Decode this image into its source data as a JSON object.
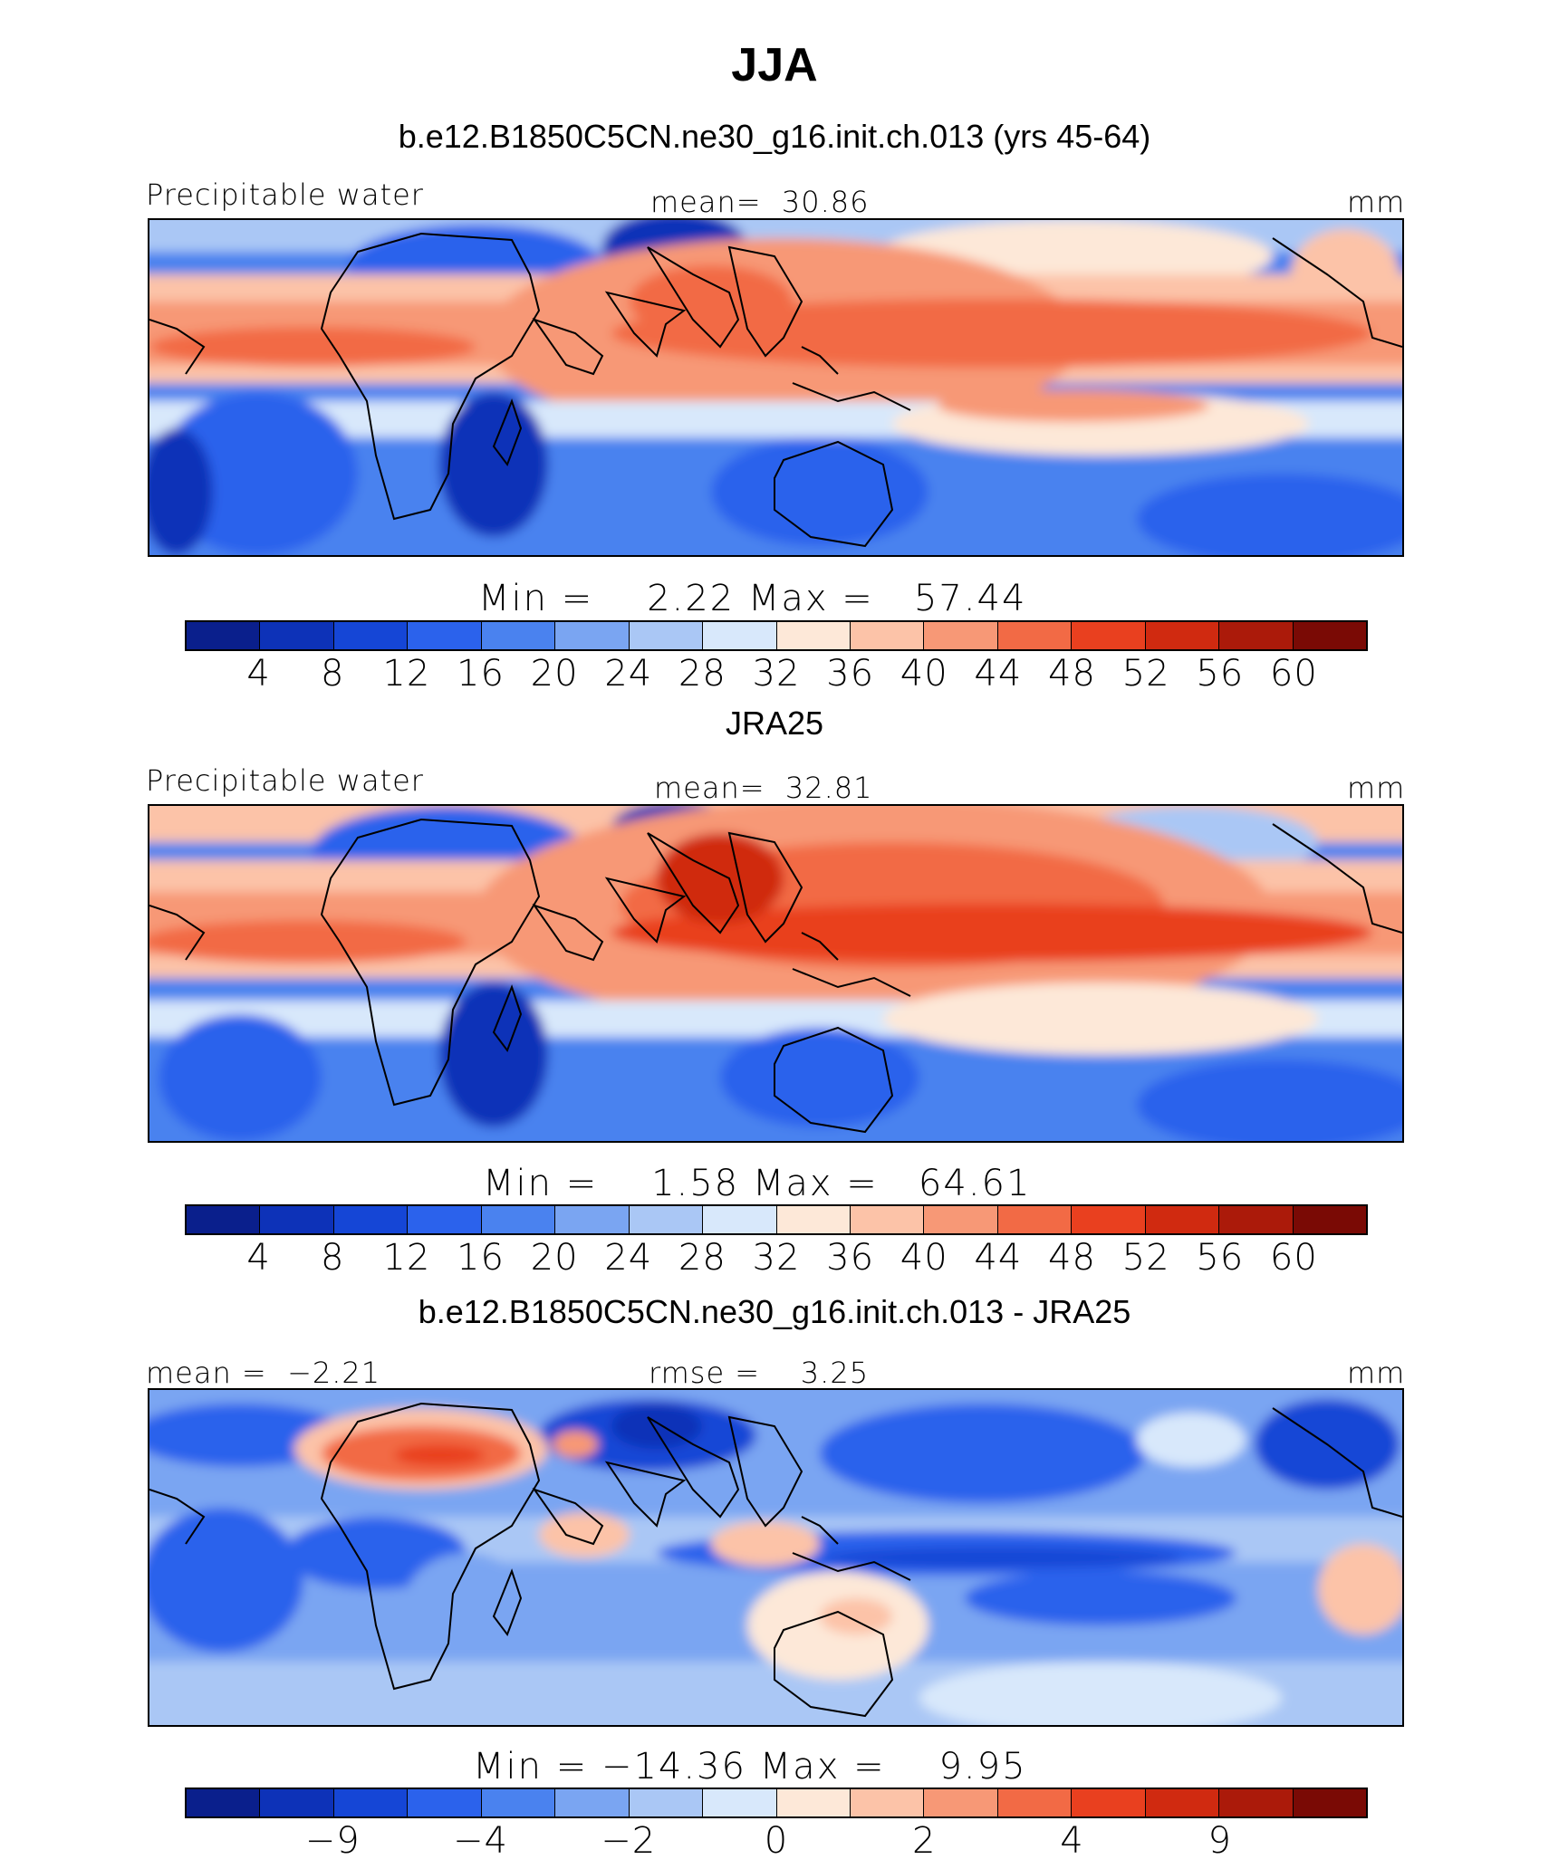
{
  "title": "JJA",
  "colors": [
    "#0a1f8c",
    "#0d32b8",
    "#1546d6",
    "#2b62ec",
    "#4a82ef",
    "#7aa5f2",
    "#aac7f5",
    "#d8e8fb",
    "#fde8d8",
    "#fcc3a8",
    "#f79876",
    "#f26a45",
    "#e9401f",
    "#d02a10",
    "#ab1a0a",
    "#7a0a05"
  ],
  "panels": [
    {
      "title": "b.e12.B1850C5CN.ne30_g16.init.ch.013 (yrs 45-64)",
      "left_label": "Precipitable water",
      "center_label": "mean=  30.86",
      "units": "mm",
      "min_max": "Min =    2.22 Max =   57.44",
      "ticks": [
        "4",
        "8",
        "12",
        "16",
        "20",
        "24",
        "28",
        "32",
        "36",
        "40",
        "44",
        "48",
        "52",
        "56",
        "60"
      ]
    },
    {
      "title": "JRA25",
      "left_label": "Precipitable water",
      "center_label": "mean=  32.81",
      "units": "mm",
      "min_max": "Min =    1.58 Max =   64.61",
      "ticks": [
        "4",
        "8",
        "12",
        "16",
        "20",
        "24",
        "28",
        "32",
        "36",
        "40",
        "44",
        "48",
        "52",
        "56",
        "60"
      ]
    },
    {
      "title": "b.e12.B1850C5CN.ne30_g16.init.ch.013 - JRA25",
      "left_label": "mean =  −2.21",
      "center_label": "rmse =    3.25",
      "units": "mm",
      "min_max": "Min = −14.36 Max =    9.95",
      "ticks": [
        "−9",
        "−4",
        "−2",
        "0",
        "2",
        "4",
        "9"
      ]
    }
  ],
  "chart_data": [
    {
      "type": "heatmap",
      "title": "b.e12.B1850C5CN.ne30_g16.init.ch.013 (yrs 45-64)",
      "variable": "Precipitable water",
      "units": "mm",
      "mean": 30.86,
      "min": 2.22,
      "max": 57.44,
      "contour_levels": [
        4,
        8,
        12,
        16,
        20,
        24,
        28,
        32,
        36,
        40,
        44,
        48,
        52,
        56,
        60
      ],
      "colormap": "blue-white-red"
    },
    {
      "type": "heatmap",
      "title": "JRA25",
      "variable": "Precipitable water",
      "units": "mm",
      "mean": 32.81,
      "min": 1.58,
      "max": 64.61,
      "contour_levels": [
        4,
        8,
        12,
        16,
        20,
        24,
        28,
        32,
        36,
        40,
        44,
        48,
        52,
        56,
        60
      ],
      "colormap": "blue-white-red"
    },
    {
      "type": "heatmap",
      "title": "b.e12.B1850C5CN.ne30_g16.init.ch.013 - JRA25",
      "units": "mm",
      "mean": -2.21,
      "rmse": 3.25,
      "min": -14.36,
      "max": 9.95,
      "labeled_levels": [
        -9,
        -4,
        -2,
        0,
        2,
        4,
        9
      ],
      "colormap": "blue-white-red"
    }
  ]
}
